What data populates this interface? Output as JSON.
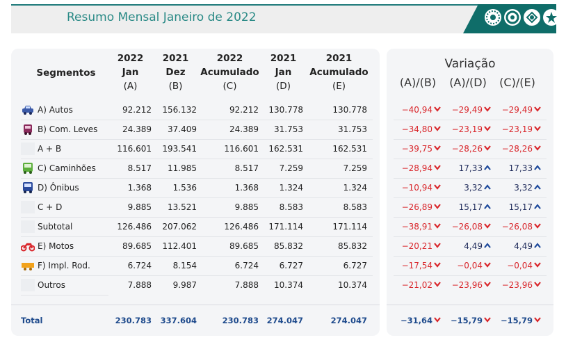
{
  "banner": {
    "title": "Resumo Mensal Janeiro de 2022"
  },
  "headers": {
    "segmentos": "Segmentos",
    "c1": [
      "2022",
      "Jan",
      "(A)"
    ],
    "c2": [
      "2021",
      "Dez",
      "(B)"
    ],
    "c3": [
      "2022",
      "Acumulado",
      "(C)"
    ],
    "c4": [
      "2021",
      "Jan",
      "(D)"
    ],
    "c5": [
      "2021",
      "Acumulado",
      "(E)"
    ],
    "variacao": "Variação",
    "v1": "(A)/(B)",
    "v2": "(A)/(D)",
    "v3": "(C)/(E)"
  },
  "rows": [
    {
      "label": "A) Autos",
      "icon": "car-icon",
      "a": "92.212",
      "b": "156.132",
      "c": "92.212",
      "d": "130.778",
      "e": "130.778",
      "v1": "-40,94",
      "v2": "-29,49",
      "v3": "-29,49"
    },
    {
      "label": "B) Com. Leves",
      "icon": "van-icon",
      "a": "24.389",
      "b": "37.409",
      "c": "24.389",
      "d": "31.753",
      "e": "31.753",
      "v1": "-34,80",
      "v2": "-23,19",
      "v3": "-23,19"
    },
    {
      "label": "A + B",
      "icon": "",
      "a": "116.601",
      "b": "193.541",
      "c": "116.601",
      "d": "162.531",
      "e": "162.531",
      "v1": "-39,75",
      "v2": "-28,26",
      "v3": "-28,26"
    },
    {
      "label": "C) Caminhões",
      "icon": "truck-icon",
      "a": "8.517",
      "b": "11.985",
      "c": "8.517",
      "d": "7.259",
      "e": "7.259",
      "v1": "-28,94",
      "v2": "17,33",
      "v3": "17,33"
    },
    {
      "label": "D) Ônibus",
      "icon": "bus-icon",
      "a": "1.368",
      "b": "1.536",
      "c": "1.368",
      "d": "1.324",
      "e": "1.324",
      "v1": "-10,94",
      "v2": "3,32",
      "v3": "3,32"
    },
    {
      "label": "C + D",
      "icon": "",
      "a": "9.885",
      "b": "13.521",
      "c": "9.885",
      "d": "8.583",
      "e": "8.583",
      "v1": "-26,89",
      "v2": "15,17",
      "v3": "15,17"
    },
    {
      "label": "Subtotal",
      "icon": "",
      "a": "126.486",
      "b": "207.062",
      "c": "126.486",
      "d": "171.114",
      "e": "171.114",
      "v1": "-38,91",
      "v2": "-26,08",
      "v3": "-26,08"
    },
    {
      "label": "E) Motos",
      "icon": "motorcycle-icon",
      "a": "89.685",
      "b": "112.401",
      "c": "89.685",
      "d": "85.832",
      "e": "85.832",
      "v1": "-20,21",
      "v2": "4,49",
      "v3": "4,49"
    },
    {
      "label": "F) Impl. Rod.",
      "icon": "trailer-icon",
      "a": "6.724",
      "b": "8.154",
      "c": "6.724",
      "d": "6.727",
      "e": "6.727",
      "v1": "-17,54",
      "v2": "-0,04",
      "v3": "-0,04"
    },
    {
      "label": "Outros",
      "icon": "",
      "a": "7.888",
      "b": "9.987",
      "c": "7.888",
      "d": "10.374",
      "e": "10.374",
      "v1": "-21,02",
      "v2": "-23,96",
      "v3": "-23,96"
    }
  ],
  "total": {
    "label": "Total",
    "a": "230.783",
    "b": "337.604",
    "c": "230.783",
    "d": "274.047",
    "e": "274.047",
    "v1": "-31,64",
    "v2": "-15,79",
    "v3": "-15,79"
  },
  "colors": {
    "negative": "#d9262b",
    "positive": "#1e2a5a",
    "brand_teal": "#0f6d69"
  }
}
